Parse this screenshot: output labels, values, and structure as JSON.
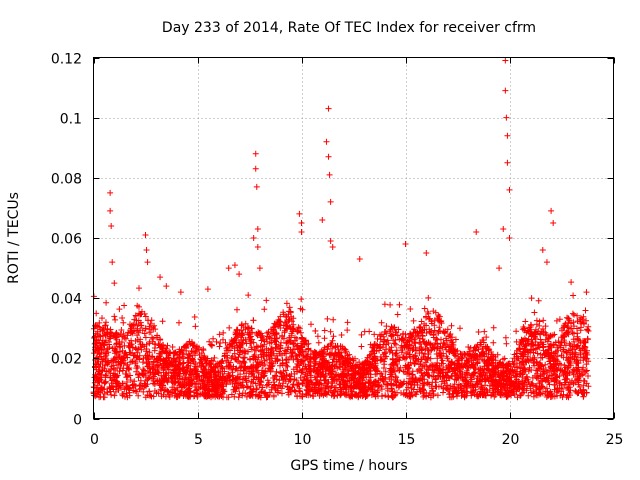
{
  "chart_data": {
    "type": "scatter",
    "title": "Day 233 of 2014, Rate Of TEC Index for receiver cfrm",
    "xlabel": "GPS time / hours",
    "ylabel": "ROTI / TECUs",
    "xlim": [
      0,
      25
    ],
    "ylim": [
      0,
      0.12
    ],
    "xticks": [
      0,
      5,
      10,
      15,
      20,
      25
    ],
    "xtick_labels": [
      "0",
      "5",
      "10",
      "15",
      "20",
      "25"
    ],
    "yticks": [
      0,
      0.02,
      0.04,
      0.06,
      0.08,
      0.1,
      0.12
    ],
    "ytick_labels": [
      "0",
      "0.02",
      "0.04",
      "0.06",
      "0.08",
      "0.1",
      "0.12"
    ],
    "grid": true,
    "marker": "+",
    "color": "#ff0000",
    "series": [
      {
        "name": "ROTI",
        "note": "dense background band approx 0.005-0.03 TECU/s from 0 to 23.8 h, plus elevated excursions listed below",
        "x": [
          0.1,
          0.2,
          0.3,
          0.6,
          0.8,
          0.8,
          0.85,
          0.9,
          1.0,
          2.5,
          2.55,
          2.6,
          3.2,
          3.5,
          4.2,
          5.5,
          6.5,
          6.8,
          7.0,
          7.7,
          7.8,
          7.8,
          7.85,
          7.9,
          7.9,
          8.0,
          9.9,
          10.0,
          10.0,
          11.0,
          11.2,
          11.3,
          11.3,
          11.35,
          11.4,
          11.4,
          11.5,
          12.8,
          15.0,
          16.0,
          18.4,
          19.5,
          19.7,
          19.8,
          19.8,
          19.85,
          19.9,
          19.9,
          20.0,
          20.0,
          21.6,
          21.8,
          22.0,
          22.1,
          23.7
        ],
        "y": [
          0.031,
          0.028,
          0.025,
          0.032,
          0.075,
          0.069,
          0.064,
          0.052,
          0.045,
          0.061,
          0.056,
          0.052,
          0.047,
          0.044,
          0.042,
          0.043,
          0.05,
          0.051,
          0.048,
          0.06,
          0.088,
          0.083,
          0.077,
          0.063,
          0.057,
          0.05,
          0.068,
          0.065,
          0.062,
          0.066,
          0.092,
          0.103,
          0.087,
          0.081,
          0.072,
          0.059,
          0.057,
          0.053,
          0.058,
          0.055,
          0.062,
          0.05,
          0.063,
          0.119,
          0.109,
          0.1,
          0.094,
          0.085,
          0.076,
          0.06,
          0.056,
          0.052,
          0.069,
          0.065,
          0.042
        ]
      }
    ]
  }
}
